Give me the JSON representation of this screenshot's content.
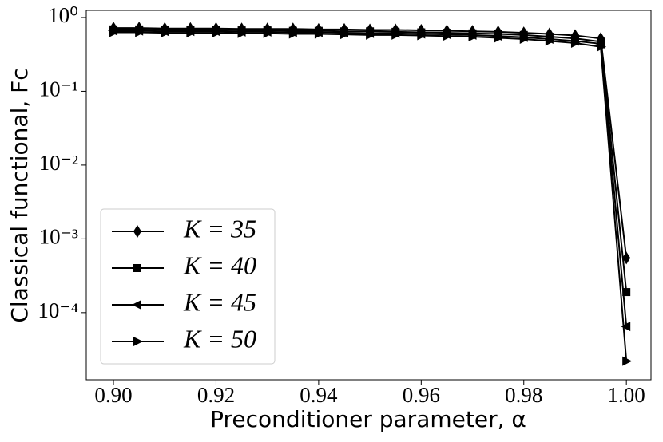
{
  "chart_data": {
    "type": "line",
    "xlabel": "Preconditioner parameter, α",
    "ylabel": "Classical functional, Fc",
    "x": [
      0.9,
      0.905,
      0.91,
      0.915,
      0.92,
      0.925,
      0.93,
      0.935,
      0.94,
      0.945,
      0.95,
      0.955,
      0.96,
      0.965,
      0.97,
      0.975,
      0.98,
      0.985,
      0.99,
      0.995,
      1.0
    ],
    "series": [
      {
        "name": "K = 35",
        "color": "#000000",
        "marker": "diamond",
        "values": [
          0.72,
          0.72,
          0.71,
          0.71,
          0.71,
          0.7,
          0.7,
          0.7,
          0.69,
          0.69,
          0.68,
          0.68,
          0.67,
          0.66,
          0.65,
          0.64,
          0.62,
          0.6,
          0.57,
          0.52,
          0.00055
        ]
      },
      {
        "name": "K = 40",
        "color": "#000000",
        "marker": "square",
        "values": [
          0.69,
          0.69,
          0.68,
          0.68,
          0.68,
          0.67,
          0.67,
          0.66,
          0.66,
          0.65,
          0.65,
          0.64,
          0.63,
          0.62,
          0.61,
          0.6,
          0.58,
          0.55,
          0.52,
          0.47,
          0.00019
        ]
      },
      {
        "name": "K = 45",
        "color": "#000000",
        "marker": "triangle-left",
        "values": [
          0.66,
          0.66,
          0.65,
          0.65,
          0.65,
          0.64,
          0.64,
          0.63,
          0.63,
          0.62,
          0.61,
          0.61,
          0.6,
          0.59,
          0.58,
          0.56,
          0.54,
          0.51,
          0.48,
          0.44,
          6.5e-05
        ]
      },
      {
        "name": "K = 50",
        "color": "#000000",
        "marker": "triangle-right",
        "values": [
          0.63,
          0.63,
          0.62,
          0.62,
          0.62,
          0.61,
          0.61,
          0.6,
          0.6,
          0.59,
          0.58,
          0.58,
          0.57,
          0.56,
          0.55,
          0.53,
          0.51,
          0.48,
          0.45,
          0.4,
          2.2e-05
        ]
      }
    ],
    "xlim": [
      0.8947,
      1.0048
    ],
    "xticks": [
      {
        "value": 0.9,
        "label": "0.90"
      },
      {
        "value": 0.92,
        "label": "0.92"
      },
      {
        "value": 0.94,
        "label": "0.94"
      },
      {
        "value": 0.96,
        "label": "0.96"
      },
      {
        "value": 0.98,
        "label": "0.98"
      },
      {
        "value": 1.0,
        "label": "1.00"
      }
    ],
    "ylim": [
      1.23e-05,
      1.25
    ],
    "yticks": [
      {
        "value": 0.0001,
        "label": "10⁻⁴"
      },
      {
        "value": 0.001,
        "label": "10⁻³"
      },
      {
        "value": 0.01,
        "label": "10⁻²"
      },
      {
        "value": 0.1,
        "label": "10⁻¹"
      },
      {
        "value": 1,
        "label": "10⁰"
      }
    ],
    "yscale": "log",
    "legend": "lower left"
  }
}
